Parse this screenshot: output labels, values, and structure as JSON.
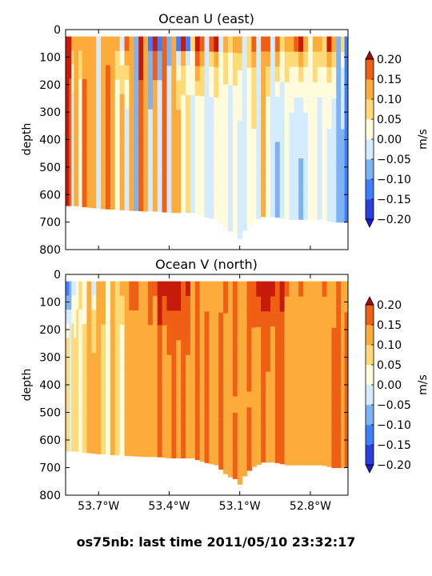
{
  "figure": {
    "suptitle": "os75nb: last time 2011/05/10 23:32:17"
  },
  "chart_data": [
    {
      "type": "heatmap",
      "title": "Ocean U (east)",
      "xlabel": "",
      "ylabel": "depth",
      "xlim": [
        -53.84,
        -52.64
      ],
      "ylim": [
        800,
        0
      ],
      "x_ticks": [
        -53.7,
        -53.4,
        -53.1,
        -52.8
      ],
      "x_tick_labels": [],
      "y_ticks": [
        0,
        100,
        200,
        300,
        400,
        500,
        600,
        700,
        800
      ],
      "y_tick_labels": [
        "0",
        "100",
        "200",
        "300",
        "400",
        "500",
        "600",
        "700",
        "800"
      ],
      "colorbar": {
        "label": "m/s",
        "levels": [
          -0.2,
          -0.15,
          -0.1,
          -0.05,
          0.0,
          0.05,
          0.1,
          0.15,
          0.2
        ],
        "tick_labels": [
          "−0.20",
          "−0.15",
          "−0.10",
          "−0.05",
          "0.00",
          "0.05",
          "0.10",
          "0.15",
          "0.20"
        ]
      },
      "data_top_depth": 25,
      "bottom_depth_profile": {
        "x": [
          -53.84,
          -53.8,
          -53.75,
          -53.7,
          -53.6,
          -53.5,
          -53.45,
          -53.4,
          -53.35,
          -53.3,
          -53.25,
          -53.2,
          -53.15,
          -53.12,
          -53.1,
          -53.08,
          -53.05,
          -53.0,
          -52.95,
          -52.9,
          -52.85,
          -52.8,
          -52.75,
          -52.7,
          -52.64
        ],
        "depth": [
          640,
          640,
          645,
          650,
          655,
          660,
          660,
          665,
          665,
          665,
          680,
          690,
          730,
          740,
          760,
          730,
          700,
          680,
          680,
          690,
          690,
          690,
          690,
          700,
          700
        ]
      },
      "column_velocity": {
        "x": [
          -53.83,
          -53.82,
          -53.81,
          -53.8,
          -53.79,
          -53.78,
          -53.76,
          -53.74,
          -53.72,
          -53.7,
          -53.68,
          -53.66,
          -53.64,
          -53.62,
          -53.6,
          -53.58,
          -53.56,
          -53.54,
          -53.52,
          -53.5,
          -53.48,
          -53.46,
          -53.44,
          -53.42,
          -53.4,
          -53.38,
          -53.36,
          -53.34,
          -53.32,
          -53.3,
          -53.28,
          -53.26,
          -53.24,
          -53.22,
          -53.2,
          -53.18,
          -53.16,
          -53.14,
          -53.12,
          -53.1,
          -53.08,
          -53.06,
          -53.04,
          -53.02,
          -53.0,
          -52.98,
          -52.96,
          -52.94,
          -52.92,
          -52.9,
          -52.88,
          -52.86,
          -52.84,
          -52.82,
          -52.8,
          -52.78,
          -52.76,
          -52.74,
          -52.72,
          -52.7,
          -52.68,
          -52.66,
          -52.65
        ],
        "surface": [
          0.18,
          0.2,
          0.12,
          0.05,
          0.08,
          0.1,
          0.06,
          0.08,
          0.05,
          -0.1,
          0.05,
          0.08,
          0.1,
          0.12,
          -0.12,
          0.15,
          0.08,
          -0.15,
          0.2,
          0.1,
          -0.2,
          0.22,
          -0.22,
          0.15,
          -0.15,
          0.1,
          -0.25,
          0.2,
          -0.2,
          0.05,
          0.22,
          0.18,
          -0.1,
          0.15,
          0.2,
          -0.08,
          0.12,
          0.05,
          0.08,
          0.1,
          -0.05,
          0.05,
          0.15,
          -0.08,
          0.12,
          0.18,
          -0.1,
          0.2,
          0.05,
          0.12,
          0.1,
          0.15,
          0.22,
          0.1,
          -0.05,
          0.08,
          0.1,
          0.05,
          0.2,
          0.12,
          -0.15,
          0.05,
          -0.2
        ],
        "deep": [
          0.15,
          0.12,
          -0.1,
          0.05,
          0.08,
          -0.05,
          0.12,
          0.1,
          0.05,
          -0.05,
          0.1,
          0.12,
          0.05,
          -0.05,
          0.1,
          -0.08,
          0.05,
          -0.1,
          0.12,
          0.08,
          -0.08,
          0.05,
          -0.05,
          0.12,
          -0.05,
          0.05,
          0.1,
          -0.05,
          0.05,
          -0.08,
          -0.05,
          -0.05,
          -0.08,
          -0.1,
          -0.05,
          0.0,
          -0.05,
          -0.1,
          -0.05,
          -0.08,
          -0.1,
          -0.05,
          -0.02,
          -0.05,
          0.05,
          -0.05,
          -0.08,
          -0.12,
          -0.1,
          -0.05,
          -0.08,
          -0.1,
          -0.12,
          -0.08,
          -0.05,
          -0.05,
          -0.1,
          -0.05,
          -0.08,
          -0.1,
          -0.15,
          -0.12,
          -0.18
        ]
      }
    },
    {
      "type": "heatmap",
      "title": "Ocean V (north)",
      "xlabel": "",
      "ylabel": "depth",
      "xlim": [
        -53.84,
        -52.64
      ],
      "ylim": [
        800,
        0
      ],
      "x_ticks": [
        -53.7,
        -53.4,
        -53.1,
        -52.8
      ],
      "x_tick_labels": [
        "53.7°W",
        "53.4°W",
        "53.1°W",
        "52.8°W"
      ],
      "y_ticks": [
        0,
        100,
        200,
        300,
        400,
        500,
        600,
        700,
        800
      ],
      "y_tick_labels": [
        "0",
        "100",
        "200",
        "300",
        "400",
        "500",
        "600",
        "700",
        "800"
      ],
      "colorbar": {
        "label": "m/s",
        "levels": [
          -0.2,
          -0.15,
          -0.1,
          -0.05,
          0.0,
          0.05,
          0.1,
          0.15,
          0.2
        ],
        "tick_labels": [
          "−0.20",
          "−0.15",
          "−0.10",
          "−0.05",
          "0.00",
          "0.05",
          "0.10",
          "0.15",
          "0.20"
        ]
      },
      "data_top_depth": 25,
      "bottom_depth_profile": {
        "x": [
          -53.84,
          -53.8,
          -53.75,
          -53.7,
          -53.6,
          -53.5,
          -53.45,
          -53.4,
          -53.35,
          -53.3,
          -53.25,
          -53.2,
          -53.15,
          -53.12,
          -53.1,
          -53.08,
          -53.05,
          -53.0,
          -52.95,
          -52.9,
          -52.85,
          -52.8,
          -52.75,
          -52.7,
          -52.64
        ],
        "depth": [
          640,
          640,
          645,
          650,
          655,
          660,
          660,
          665,
          665,
          665,
          680,
          690,
          730,
          740,
          760,
          730,
          700,
          680,
          680,
          690,
          690,
          690,
          690,
          700,
          700
        ]
      },
      "column_velocity": {
        "x": [
          -53.83,
          -53.82,
          -53.81,
          -53.8,
          -53.79,
          -53.78,
          -53.76,
          -53.74,
          -53.72,
          -53.7,
          -53.68,
          -53.66,
          -53.64,
          -53.62,
          -53.6,
          -53.58,
          -53.56,
          -53.54,
          -53.52,
          -53.5,
          -53.48,
          -53.46,
          -53.44,
          -53.42,
          -53.4,
          -53.38,
          -53.36,
          -53.34,
          -53.32,
          -53.3,
          -53.28,
          -53.26,
          -53.24,
          -53.22,
          -53.2,
          -53.18,
          -53.16,
          -53.14,
          -53.12,
          -53.1,
          -53.08,
          -53.06,
          -53.04,
          -53.02,
          -53.0,
          -52.98,
          -52.96,
          -52.94,
          -52.92,
          -52.9,
          -52.88,
          -52.86,
          -52.84,
          -52.82,
          -52.8,
          -52.78,
          -52.76,
          -52.74,
          -52.72,
          -52.7,
          -52.68,
          -52.66,
          -52.65
        ],
        "surface": [
          -0.22,
          -0.15,
          -0.1,
          -0.08,
          -0.05,
          0.05,
          -0.05,
          0.05,
          -0.1,
          0.05,
          0.1,
          -0.05,
          0.08,
          0.05,
          0.1,
          0.05,
          0.12,
          0.15,
          0.08,
          0.1,
          0.15,
          0.12,
          0.2,
          0.18,
          0.22,
          0.2,
          0.25,
          0.15,
          0.2,
          0.1,
          0.12,
          0.05,
          0.08,
          0.1,
          0.05,
          0.08,
          0.12,
          0.05,
          0.1,
          0.08,
          0.05,
          0.1,
          0.15,
          0.2,
          0.22,
          0.25,
          0.2,
          0.15,
          0.18,
          0.12,
          0.1,
          0.08,
          0.12,
          0.1,
          0.05,
          0.08,
          0.1,
          0.12,
          0.08,
          0.05,
          0.1,
          0.05,
          0.08
        ],
        "deep": [
          0.05,
          -0.05,
          0.05,
          0.02,
          0.05,
          -0.05,
          0.03,
          0.05,
          0.08,
          0.05,
          0.02,
          -0.05,
          0.05,
          0.03,
          -0.05,
          0.05,
          0.08,
          0.05,
          0.1,
          0.05,
          0.08,
          0.05,
          0.12,
          0.05,
          0.08,
          0.1,
          0.05,
          0.12,
          0.08,
          0.05,
          0.1,
          0.08,
          0.12,
          0.05,
          0.1,
          0.12,
          0.08,
          0.05,
          0.1,
          0.08,
          0.05,
          0.1,
          0.08,
          0.05,
          0.1,
          0.08,
          0.05,
          0.1,
          0.12,
          0.05,
          0.08,
          0.1,
          0.05,
          0.08,
          0.05,
          0.1,
          0.08,
          0.05,
          0.1,
          0.12,
          0.15,
          0.1,
          0.12
        ]
      }
    }
  ],
  "colors": {
    "palette": [
      "#2a3fe0",
      "#3f7fff",
      "#7fb2f2",
      "#d4ecfd",
      "#fffbdc",
      "#ffdb78",
      "#fdac3b",
      "#ef5f14",
      "#c61a0a"
    ],
    "over": "#a80a0a",
    "under": "#1a1ad8",
    "axes": "#000000"
  }
}
